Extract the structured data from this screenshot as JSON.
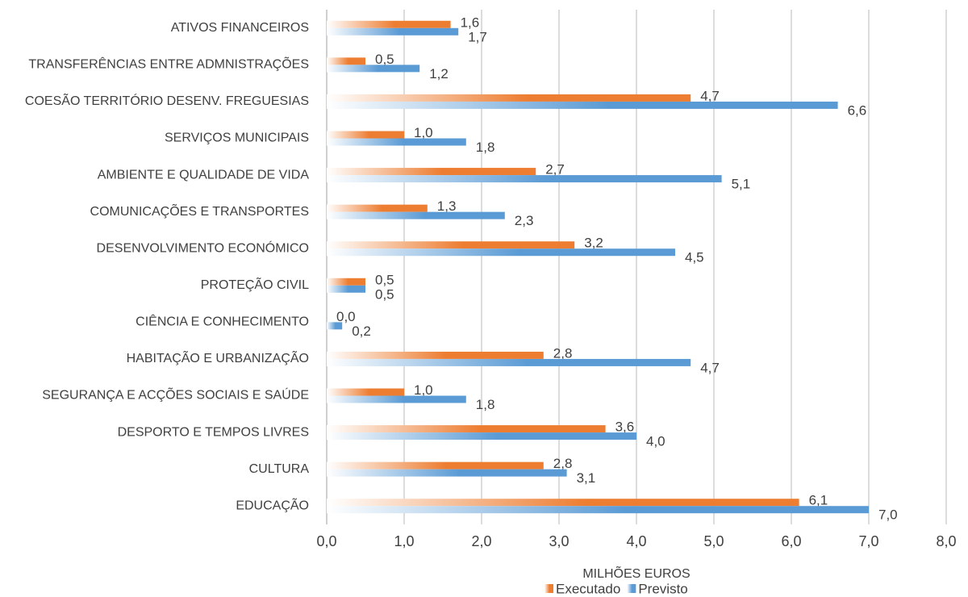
{
  "chart_data": {
    "type": "bar",
    "orientation": "horizontal",
    "categories": [
      "ATIVOS FINANCEIROS",
      "TRANSFERÊNCIAS ENTRE ADMNISTRAÇÕES",
      "COESÃO TERRITÓRIO DESENV. FREGUESIAS",
      "SERVIÇOS MUNICIPAIS",
      "AMBIENTE E QUALIDADE DE VIDA",
      "COMUNICAÇÕES E TRANSPORTES",
      "DESENVOLVIMENTO ECONÓMICO",
      "PROTEÇÃO CIVIL",
      "CIÊNCIA E CONHECIMENTO",
      "HABITAÇÃO E URBANIZAÇÃO",
      "SEGURANÇA E ACÇÕES SOCIAIS E SAÚDE",
      "DESPORTO E TEMPOS LIVRES",
      "CULTURA",
      "EDUCAÇÃO"
    ],
    "series": [
      {
        "name": "Executado",
        "color": "#ED7D31",
        "values": [
          1.6,
          0.5,
          4.7,
          1.0,
          2.7,
          1.3,
          3.2,
          0.5,
          0.0,
          2.8,
          1.0,
          3.6,
          2.8,
          6.1
        ],
        "value_labels": [
          "1,6",
          "0,5",
          "4,7",
          "1,0",
          "2,7",
          "1,3",
          "3,2",
          "0,5",
          "0,0",
          "2,8",
          "1,0",
          "3,6",
          "2,8",
          "6,1"
        ]
      },
      {
        "name": "Previsto",
        "color": "#5B9BD5",
        "values": [
          1.7,
          1.2,
          6.6,
          1.8,
          5.1,
          2.3,
          4.5,
          0.5,
          0.2,
          4.7,
          1.8,
          4.0,
          3.1,
          7.0
        ],
        "value_labels": [
          "1,7",
          "1,2",
          "6,6",
          "1,8",
          "5,1",
          "2,3",
          "4,5",
          "0,5",
          "0,2",
          "4,7",
          "1,8",
          "4,0",
          "3,1",
          "7,0"
        ]
      }
    ],
    "xlabel": "MILHÕES EUROS",
    "xlim": [
      0,
      8
    ],
    "xticks": [
      {
        "value": 0,
        "label": "0,0"
      },
      {
        "value": 1,
        "label": "1,0"
      },
      {
        "value": 2,
        "label": "2,0"
      },
      {
        "value": 3,
        "label": "3,0"
      },
      {
        "value": 4,
        "label": "4,0"
      },
      {
        "value": 5,
        "label": "5,0"
      },
      {
        "value": 6,
        "label": "6,0"
      },
      {
        "value": 7,
        "label": "7,0"
      },
      {
        "value": 8,
        "label": "8,0"
      }
    ],
    "grid": true,
    "legend": "bottom"
  }
}
